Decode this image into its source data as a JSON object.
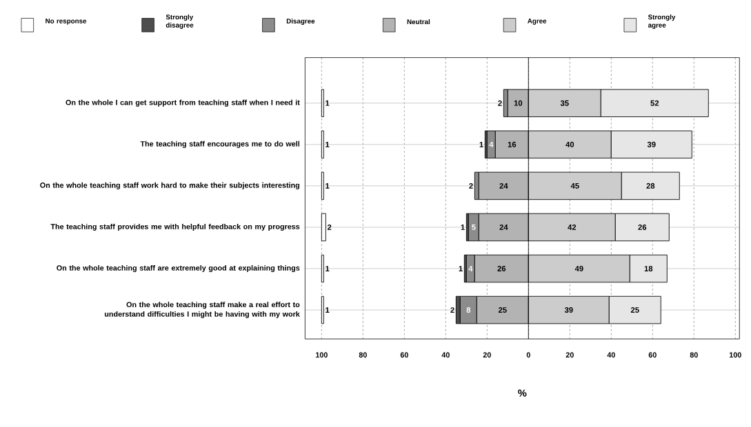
{
  "chart_data": {
    "type": "bar",
    "orientation": "horizontal",
    "xlabel": "%",
    "categories": [
      "On the whole I can get support from teaching staff when I need it",
      "The teaching staff encourages me to do well",
      "On the whole teaching staff work hard to make their subjects interesting",
      "The teaching staff provides me with helpful feedback on my progress",
      "On the whole teaching staff are extremely good at explaining things",
      "On the whole teaching staff make a real effort to understand difficulties I might be having with my work"
    ],
    "series": [
      {
        "name": "No response",
        "color": "#ffffff",
        "values": [
          1,
          1,
          1,
          2,
          1,
          1
        ],
        "base": [
          -100,
          -100,
          -100,
          -100,
          -100,
          -100
        ]
      },
      {
        "name": "Strongly disagree",
        "color": "#4d4d4d",
        "values": [
          null,
          1,
          null,
          1,
          1,
          2
        ],
        "base": [
          null,
          -21,
          null,
          -30,
          -31,
          -35
        ]
      },
      {
        "name": "Disagree",
        "color": "#8c8c8c",
        "values": [
          2,
          4,
          2,
          5,
          4,
          8
        ],
        "base": [
          -12,
          -20,
          -26,
          -29,
          -30,
          -33
        ]
      },
      {
        "name": "Neutral",
        "color": "#b3b3b3",
        "values": [
          10,
          16,
          24,
          24,
          26,
          25
        ],
        "base": [
          -10,
          -16,
          -24,
          -24,
          -26,
          -25
        ]
      },
      {
        "name": "Agree",
        "color": "#cccccc",
        "values": [
          35,
          40,
          45,
          42,
          49,
          39
        ],
        "base": [
          0,
          0,
          0,
          0,
          0,
          0
        ]
      },
      {
        "name": "Strongly agree",
        "color": "#e6e6e6",
        "values": [
          52,
          39,
          28,
          26,
          18,
          25
        ],
        "base": [
          35,
          40,
          45,
          42,
          49,
          39
        ]
      }
    ],
    "xlim": [
      -108,
      102
    ],
    "xticks": [
      {
        "value": -100,
        "label": "100"
      },
      {
        "value": -80,
        "label": "80"
      },
      {
        "value": -60,
        "label": "60"
      },
      {
        "value": -40,
        "label": "40"
      },
      {
        "value": -20,
        "label": "20"
      },
      0,
      20,
      40,
      60,
      80,
      100
    ],
    "ref_lines": [
      {
        "axis": "x",
        "value": 0,
        "color": "#000000"
      }
    ],
    "grid": true,
    "legend": "top",
    "data_labels": true
  }
}
